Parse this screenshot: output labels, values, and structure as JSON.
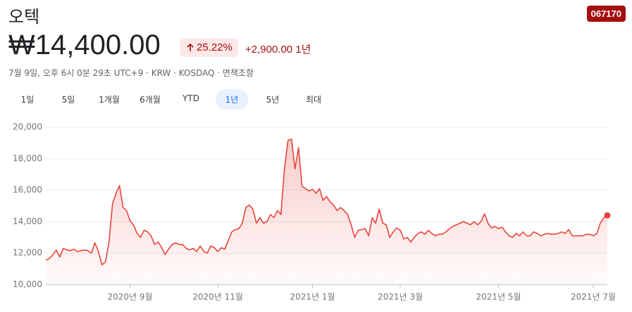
{
  "header": {
    "title": "오텍",
    "ticker": "067170",
    "price": "₩14,400.00",
    "change_pct": "25.22%",
    "change": "+2,900.00",
    "period": "1년",
    "subline": "7월 9일, 오후 6시 0분 29초 UTC+9 · KRW · KOSDAQ · 면책조항"
  },
  "tabs": [
    "1일",
    "5일",
    "1개월",
    "6개월",
    "YTD",
    "1년",
    "5년",
    "최대"
  ],
  "active_tab": 5,
  "chart_data": {
    "type": "area",
    "color": "#e8453c",
    "grid": true,
    "values": [
      11550,
      11650,
      11900,
      12200,
      11750,
      12300,
      12200,
      12150,
      12250,
      12100,
      12150,
      12200,
      12150,
      12000,
      12650,
      12100,
      11250,
      11450,
      12700,
      15100,
      15800,
      16300,
      14900,
      14700,
      14050,
      13800,
      13250,
      13000,
      13450,
      13350,
      13100,
      12550,
      12700,
      12350,
      11900,
      12250,
      12550,
      12650,
      12550,
      12550,
      12300,
      12200,
      12300,
      12100,
      12450,
      12100,
      12000,
      12450,
      12350,
      12100,
      12350,
      12250,
      12800,
      13350,
      13500,
      13550,
      13900,
      14900,
      15050,
      14800,
      13900,
      14250,
      13900,
      14000,
      14450,
      14250,
      14700,
      14450,
      17350,
      19150,
      19250,
      17350,
      18700,
      16250,
      16100,
      15950,
      16050,
      15800,
      16100,
      15350,
      15600,
      15250,
      15050,
      14700,
      14900,
      14700,
      14450,
      13800,
      13000,
      13450,
      13500,
      13550,
      13100,
      14250,
      13900,
      14800,
      13900,
      13800,
      13000,
      13350,
      13600,
      13450,
      12900,
      13000,
      12700,
      13000,
      13250,
      13350,
      13200,
      13450,
      13250,
      13100,
      13200,
      13200,
      13350,
      13550,
      13700,
      13800,
      13900,
      14000,
      13900,
      13800,
      14000,
      13800,
      14000,
      14500,
      13900,
      13600,
      13700,
      13550,
      13650,
      13350,
      13100,
      13000,
      13250,
      13100,
      13350,
      13100,
      13100,
      13350,
      13250,
      13100,
      13200,
      13250,
      13200,
      13200,
      13250,
      13350,
      13250,
      13500,
      13100,
      13100,
      13100,
      13100,
      13200,
      13200,
      13100,
      13250,
      13900,
      14250,
      14400
    ],
    "xlim": [
      0,
      160
    ],
    "xticks": [
      {
        "value": 24,
        "label": "2020년 9월"
      },
      {
        "value": 49,
        "label": "2020년 11월"
      },
      {
        "value": 76,
        "label": "2021년 1월"
      },
      {
        "value": 101,
        "label": "2021년 3월"
      },
      {
        "value": 129,
        "label": "2021년 5월"
      },
      {
        "value": 156,
        "label": "2021년 7월"
      }
    ],
    "ylim": [
      10000,
      20000
    ],
    "yticks": [
      {
        "value": 10000,
        "label": "10,000"
      },
      {
        "value": 12000,
        "label": "12,000"
      },
      {
        "value": 14000,
        "label": "14,000"
      },
      {
        "value": 16000,
        "label": "16,000"
      },
      {
        "value": 18000,
        "label": "18,000"
      },
      {
        "value": 20000,
        "label": "20,000"
      }
    ]
  }
}
